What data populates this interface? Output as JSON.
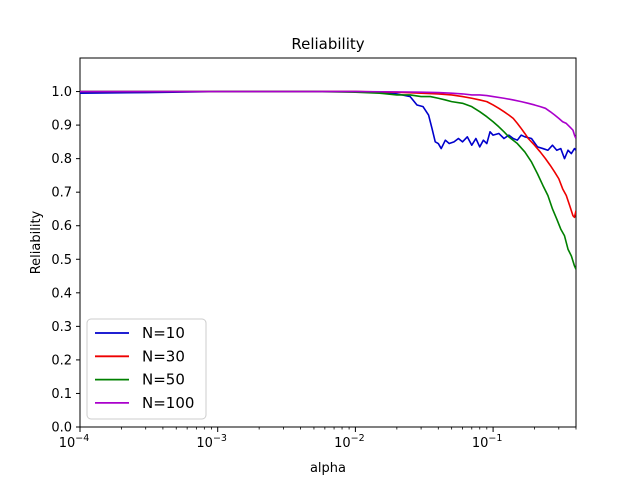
{
  "chart_data": {
    "type": "line",
    "title": "Reliability",
    "xlabel": "alpha",
    "ylabel": "Reliability",
    "xscale": "log",
    "xlim": [
      0.0001,
      0.4
    ],
    "ylim": [
      0.0,
      1.1
    ],
    "grid": false,
    "legend_position": "lower-left",
    "x_ticks": [
      {
        "value": 0.0001,
        "label": "10",
        "exp": "−4"
      },
      {
        "value": 0.001,
        "label": "10",
        "exp": "−3"
      },
      {
        "value": 0.01,
        "label": "10",
        "exp": "−2"
      },
      {
        "value": 0.1,
        "label": "10",
        "exp": "−1"
      }
    ],
    "y_ticks": [
      "0.0",
      "0.1",
      "0.2",
      "0.3",
      "0.4",
      "0.5",
      "0.6",
      "0.7",
      "0.8",
      "0.9",
      "1.0"
    ],
    "series": [
      {
        "name": "N=10",
        "color": "#0000cc",
        "points": [
          [
            0.0001,
            0.995
          ],
          [
            0.0003,
            0.997
          ],
          [
            0.001,
            1.0
          ],
          [
            0.01,
            1.0
          ],
          [
            0.015,
            0.998
          ],
          [
            0.02,
            0.993
          ],
          [
            0.025,
            0.985
          ],
          [
            0.028,
            0.96
          ],
          [
            0.031,
            0.955
          ],
          [
            0.034,
            0.93
          ],
          [
            0.036,
            0.89
          ],
          [
            0.038,
            0.85
          ],
          [
            0.04,
            0.845
          ],
          [
            0.042,
            0.83
          ],
          [
            0.045,
            0.855
          ],
          [
            0.048,
            0.845
          ],
          [
            0.052,
            0.85
          ],
          [
            0.056,
            0.86
          ],
          [
            0.06,
            0.85
          ],
          [
            0.065,
            0.865
          ],
          [
            0.07,
            0.84
          ],
          [
            0.075,
            0.86
          ],
          [
            0.08,
            0.835
          ],
          [
            0.085,
            0.855
          ],
          [
            0.09,
            0.845
          ],
          [
            0.095,
            0.88
          ],
          [
            0.1,
            0.87
          ],
          [
            0.11,
            0.875
          ],
          [
            0.12,
            0.86
          ],
          [
            0.13,
            0.87
          ],
          [
            0.14,
            0.86
          ],
          [
            0.15,
            0.855
          ],
          [
            0.16,
            0.87
          ],
          [
            0.17,
            0.865
          ],
          [
            0.19,
            0.86
          ],
          [
            0.21,
            0.835
          ],
          [
            0.23,
            0.83
          ],
          [
            0.25,
            0.825
          ],
          [
            0.27,
            0.84
          ],
          [
            0.29,
            0.825
          ],
          [
            0.31,
            0.83
          ],
          [
            0.33,
            0.8
          ],
          [
            0.35,
            0.825
          ],
          [
            0.37,
            0.815
          ],
          [
            0.39,
            0.83
          ],
          [
            0.4,
            0.825
          ]
        ]
      },
      {
        "name": "N=30",
        "color": "#ee0000",
        "points": [
          [
            0.0001,
            1.0
          ],
          [
            0.01,
            1.0
          ],
          [
            0.02,
            0.998
          ],
          [
            0.03,
            0.995
          ],
          [
            0.04,
            0.993
          ],
          [
            0.05,
            0.99
          ],
          [
            0.06,
            0.985
          ],
          [
            0.07,
            0.98
          ],
          [
            0.08,
            0.975
          ],
          [
            0.09,
            0.97
          ],
          [
            0.1,
            0.96
          ],
          [
            0.11,
            0.95
          ],
          [
            0.12,
            0.94
          ],
          [
            0.13,
            0.93
          ],
          [
            0.14,
            0.92
          ],
          [
            0.15,
            0.905
          ],
          [
            0.16,
            0.89
          ],
          [
            0.17,
            0.875
          ],
          [
            0.18,
            0.86
          ],
          [
            0.2,
            0.84
          ],
          [
            0.22,
            0.82
          ],
          [
            0.24,
            0.8
          ],
          [
            0.26,
            0.78
          ],
          [
            0.28,
            0.76
          ],
          [
            0.3,
            0.74
          ],
          [
            0.32,
            0.71
          ],
          [
            0.34,
            0.69
          ],
          [
            0.36,
            0.66
          ],
          [
            0.38,
            0.63
          ],
          [
            0.39,
            0.625
          ],
          [
            0.4,
            0.645
          ]
        ]
      },
      {
        "name": "N=50",
        "color": "#008000",
        "points": [
          [
            0.0001,
            1.0
          ],
          [
            0.005,
            1.0
          ],
          [
            0.01,
            0.998
          ],
          [
            0.015,
            0.995
          ],
          [
            0.02,
            0.99
          ],
          [
            0.025,
            0.99
          ],
          [
            0.03,
            0.985
          ],
          [
            0.035,
            0.985
          ],
          [
            0.04,
            0.98
          ],
          [
            0.045,
            0.975
          ],
          [
            0.05,
            0.97
          ],
          [
            0.06,
            0.965
          ],
          [
            0.07,
            0.955
          ],
          [
            0.08,
            0.94
          ],
          [
            0.09,
            0.925
          ],
          [
            0.1,
            0.91
          ],
          [
            0.11,
            0.895
          ],
          [
            0.12,
            0.88
          ],
          [
            0.13,
            0.865
          ],
          [
            0.15,
            0.845
          ],
          [
            0.17,
            0.82
          ],
          [
            0.19,
            0.79
          ],
          [
            0.21,
            0.755
          ],
          [
            0.23,
            0.72
          ],
          [
            0.25,
            0.69
          ],
          [
            0.27,
            0.65
          ],
          [
            0.29,
            0.62
          ],
          [
            0.31,
            0.59
          ],
          [
            0.33,
            0.57
          ],
          [
            0.35,
            0.53
          ],
          [
            0.37,
            0.51
          ],
          [
            0.39,
            0.48
          ],
          [
            0.4,
            0.47
          ]
        ]
      },
      {
        "name": "N=100",
        "color": "#aa00cc",
        "points": [
          [
            0.0001,
            1.0
          ],
          [
            0.01,
            1.0
          ],
          [
            0.02,
            0.999
          ],
          [
            0.03,
            0.998
          ],
          [
            0.04,
            0.997
          ],
          [
            0.05,
            0.995
          ],
          [
            0.06,
            0.993
          ],
          [
            0.07,
            0.99
          ],
          [
            0.08,
            0.99
          ],
          [
            0.09,
            0.988
          ],
          [
            0.1,
            0.985
          ],
          [
            0.12,
            0.98
          ],
          [
            0.14,
            0.975
          ],
          [
            0.16,
            0.97
          ],
          [
            0.18,
            0.965
          ],
          [
            0.2,
            0.96
          ],
          [
            0.22,
            0.955
          ],
          [
            0.24,
            0.95
          ],
          [
            0.26,
            0.94
          ],
          [
            0.28,
            0.93
          ],
          [
            0.3,
            0.92
          ],
          [
            0.32,
            0.91
          ],
          [
            0.34,
            0.905
          ],
          [
            0.36,
            0.895
          ],
          [
            0.38,
            0.885
          ],
          [
            0.39,
            0.87
          ],
          [
            0.4,
            0.86
          ]
        ]
      }
    ]
  }
}
